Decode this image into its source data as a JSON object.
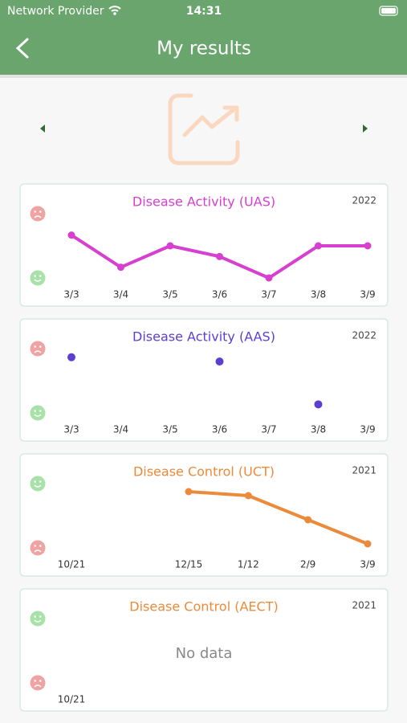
{
  "status_bar": {
    "carrier": "Network Provider",
    "time": "14:31"
  },
  "header": {
    "title": "My results"
  },
  "charts": [
    {
      "type": "line",
      "title": "Disease Activity (UAS)",
      "year": 2022,
      "color": "#d63fcf",
      "top_face": "sad",
      "x": [
        "3/3",
        "3/4",
        "3/5",
        "3/6",
        "3/7",
        "3/8",
        "3/9"
      ],
      "values": [
        4,
        1,
        3,
        2,
        0,
        3,
        3
      ],
      "ylim": [
        0,
        6
      ]
    },
    {
      "type": "scatter",
      "title": "Disease Activity (AAS)",
      "year": 2022,
      "color": "#5b3fd0",
      "top_face": "sad",
      "x": [
        "3/3",
        "3/4",
        "3/5",
        "3/6",
        "3/7",
        "3/8",
        "3/9"
      ],
      "values": [
        13,
        null,
        null,
        12,
        null,
        2,
        null
      ],
      "ylim": [
        0,
        15
      ]
    },
    {
      "type": "line",
      "title": "Disease Control (UCT)",
      "year": 2021,
      "color": "#ec8a3c",
      "top_face": "happy",
      "x": [
        "10/21",
        "12/15",
        "1/12",
        "2/9",
        "3/9"
      ],
      "values": [
        null,
        14,
        13,
        7,
        1
      ],
      "ylim": [
        0,
        16
      ]
    },
    {
      "type": "line",
      "title": "Disease Control (AECT)",
      "year": 2021,
      "color": "#ec8a3c",
      "top_face": "happy",
      "x": [
        "10/21"
      ],
      "values": [
        null
      ],
      "ylim": [
        0,
        16
      ],
      "empty_text": "No data"
    }
  ]
}
